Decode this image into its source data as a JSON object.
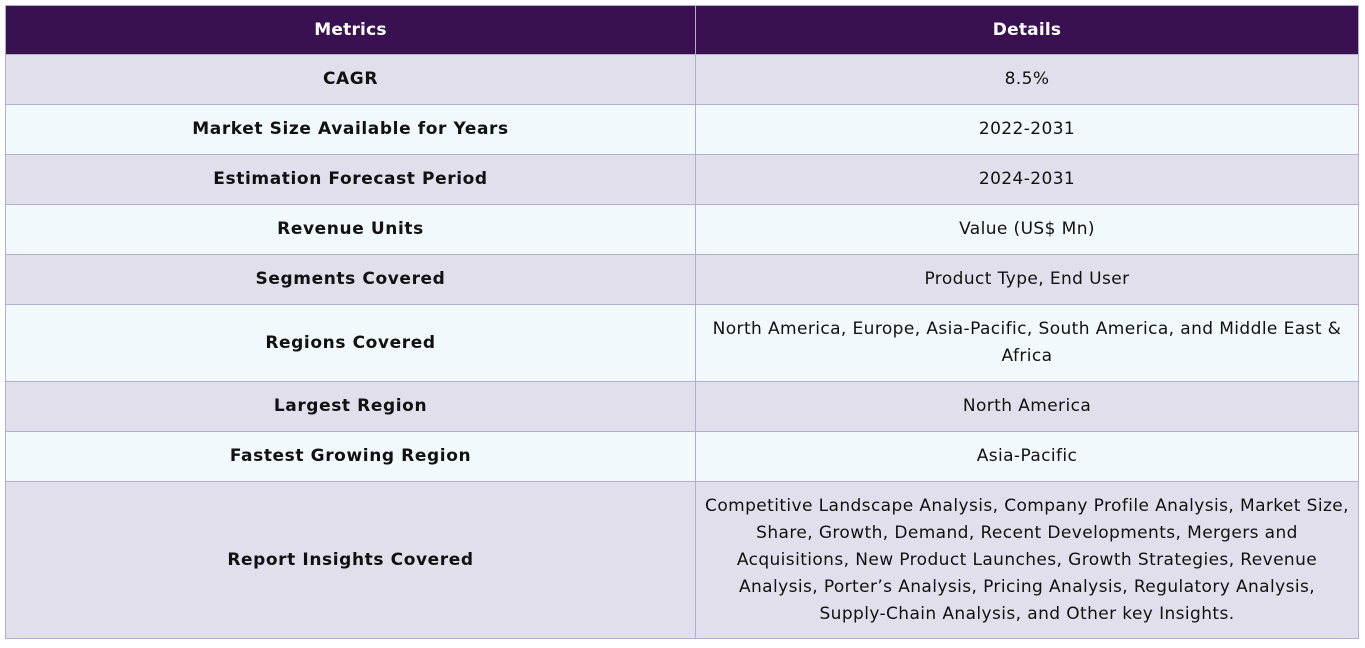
{
  "table": {
    "headers": [
      "Metrics",
      "Details"
    ],
    "rows": [
      {
        "metric": "CAGR",
        "detail": "8.5%"
      },
      {
        "metric": "Market Size Available for Years",
        "detail": "2022-2031"
      },
      {
        "metric": "Estimation Forecast Period",
        "detail": "2024-2031"
      },
      {
        "metric": "Revenue Units",
        "detail": "Value (US$ Mn)"
      },
      {
        "metric": "Segments Covered",
        "detail": "Product Type, End User"
      },
      {
        "metric": "Regions Covered",
        "detail": "North America, Europe, Asia-Pacific, South America, and Middle East & Africa"
      },
      {
        "metric": "Largest Region",
        "detail": "North America"
      },
      {
        "metric": "Fastest Growing Region",
        "detail": "Asia-Pacific"
      },
      {
        "metric": "Report Insights Covered",
        "detail": "Competitive Landscape Analysis, Company Profile Analysis, Market Size, Share, Growth, Demand, Recent Developments, Mergers and Acquisitions, New Product Launches, Growth Strategies, Revenue Analysis, Porter’s Analysis, Pricing Analysis, Regulatory Analysis, Supply-Chain Analysis, and Other key Insights."
      }
    ]
  },
  "colors": {
    "header_bg": "#3a1150",
    "row_odd_bg": "#e2dfec",
    "row_even_bg": "#f2f9fc",
    "border": "#b3aecd"
  }
}
